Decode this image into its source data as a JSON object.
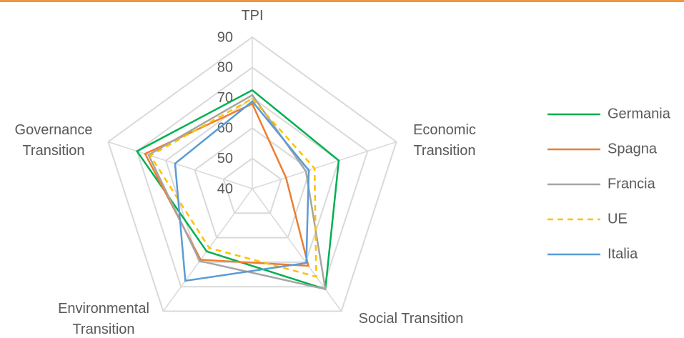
{
  "chart_data": {
    "type": "radar",
    "categories": [
      "TPI",
      "Economic Transition",
      "Social Transition",
      "Environmental Transition",
      "Governance Transition"
    ],
    "ylim": [
      40,
      90
    ],
    "yticks": [
      40,
      50,
      60,
      70,
      80,
      90
    ],
    "grid": true,
    "legend": "right",
    "series": [
      {
        "name": "Germania",
        "color": "#00b050",
        "values": [
          72.5,
          70,
          81,
          65.6,
          80
        ]
      },
      {
        "name": "Spagna",
        "color": "#ed7d31",
        "values": [
          68,
          51.7,
          71.5,
          69,
          77.2
        ]
      },
      {
        "name": "Francia",
        "color": "#a5a5a5",
        "values": [
          70.9,
          58.6,
          81,
          69.5,
          76
        ]
      },
      {
        "name": "UE",
        "color": "#ffc000",
        "dashed": true,
        "values": [
          69.7,
          61.6,
          75.9,
          64.2,
          75.4
        ]
      },
      {
        "name": "Italia",
        "color": "#5b9bd5",
        "values": [
          68.8,
          59.6,
          70.3,
          77.6,
          66.8
        ]
      }
    ]
  }
}
